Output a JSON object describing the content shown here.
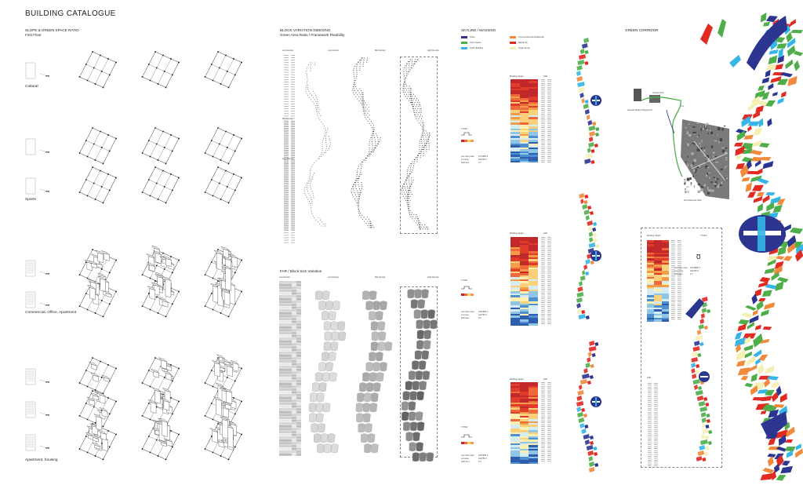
{
  "title": "BUILDING CATALOGUE",
  "slope": {
    "heading": "SLOPE & GREEN SPACE RATIO",
    "sub": "First Floor",
    "categories": [
      "Cultural",
      "Sports",
      "Commercial, Office, Apartment",
      "Apartment, housing"
    ]
  },
  "block": {
    "heading": "BLOCK VARIATION INDEXING",
    "sub": "Green Area Ratio / Framework Flexibility",
    "col_labels": [
      "Low Density",
      "Mid Density",
      "High Density"
    ],
    "row_labels": [
      "Low Density",
      "Mid Density",
      "High Density"
    ]
  },
  "far": {
    "heading": "FAR / Block Size Variation",
    "col_labels": [
      "Low Density",
      "Mid Density",
      "High Density"
    ],
    "row_labels": [
      "Low Density",
      "Mid Density",
      "High Density"
    ]
  },
  "skyline": {
    "heading": "SKYLINE / MASSING",
    "legend": [
      {
        "label": "Parks",
        "color": "#2c3590"
      },
      {
        "label": "Commercial and Residential",
        "color": "#f08a3c"
      },
      {
        "label": "Open Space",
        "color": "#4fae4a"
      },
      {
        "label": "Mid-family",
        "color": "#e02a22"
      },
      {
        "label": "Public Building",
        "color": "#35b6e6"
      },
      {
        "label": "Single family",
        "color": "#f4efb2"
      }
    ],
    "panels": [
      {
        "col1": "Building Height",
        "col2": "FAR",
        "type": "TYPE1",
        "sum_label": "sum floor area",
        "sum_val": "1074886.4",
        "lot_label": "Lot area",
        "lot_val": "402750.3",
        "far_label": "FAR-ALL",
        "far_val": "2.7"
      },
      {
        "col1": "Building Height",
        "col2": "FAR",
        "type": "TYPE2",
        "sum_label": "sum floor area",
        "sum_val": "2267836.1",
        "lot_label": "Lot area",
        "lot_val": "422750.3",
        "far_label": "FAR-ALL",
        "far_val": "5.4"
      },
      {
        "col1": "Building Height",
        "col2": "FAR",
        "type": "TYPE3",
        "sum_label": "sum floor area",
        "sum_val": "2267836.1",
        "lot_label": "Lot area",
        "lot_val": "422750.3",
        "far_label": "FAR-ALL",
        "far_val": "5.4"
      }
    ]
  },
  "green": {
    "heading": "GREEN CORRIDOR",
    "map_labels": [
      "Crissie Field",
      "Ctz",
      "Herman Estpes Playground",
      "Floyd Bennett Field"
    ],
    "panel": {
      "col1": "Building Height",
      "type": "TYPE4",
      "sum_label": "sum floor area",
      "sum_val": "1074886.4",
      "lot_label": "sum area",
      "lot_val": "402750.3",
      "far_label": "FAR-ALL",
      "far_val": "2.7",
      "far_col": "FAR"
    }
  }
}
